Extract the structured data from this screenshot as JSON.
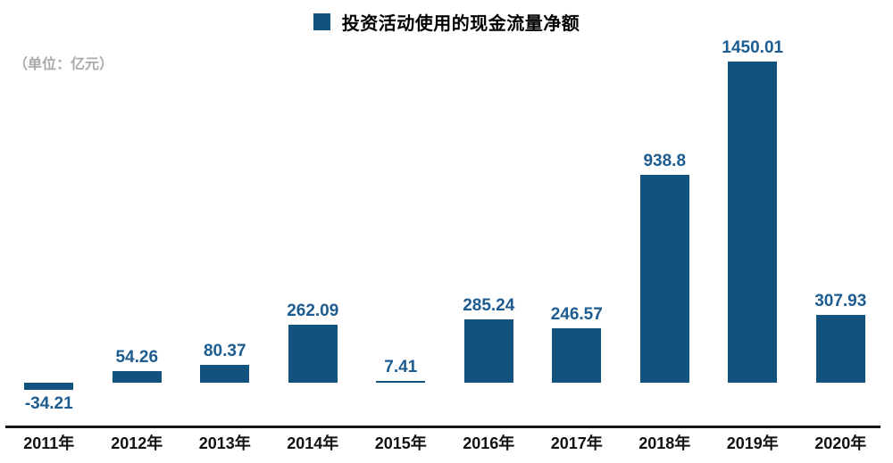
{
  "legend": {
    "label": "投资活动使用的现金流量净额"
  },
  "unit_label": "（单位：亿元）",
  "chart_data": {
    "type": "bar",
    "title": "投资活动使用的现金流量净额",
    "subtitle": "",
    "xlabel": "",
    "ylabel": "亿元",
    "unit_label": "（单位：亿元）",
    "categories": [
      "2011年",
      "2012年",
      "2013年",
      "2014年",
      "2015年",
      "2016年",
      "2017年",
      "2018年",
      "2019年",
      "2020年"
    ],
    "series": [
      {
        "name": "投资活动使用的现金流量净额",
        "values": [
          -34.21,
          54.26,
          80.37,
          262.09,
          7.41,
          285.24,
          246.57,
          938.8,
          1450.01,
          307.93
        ]
      }
    ],
    "values": [
      -34.21,
      54.26,
      80.37,
      262.09,
      7.41,
      285.24,
      246.57,
      938.8,
      1450.01,
      307.93
    ],
    "value_labels": [
      "-34.21",
      "54.26",
      "80.37",
      "262.09",
      "7.41",
      "285.24",
      "246.57",
      "938.8",
      "1450.01",
      "307.93"
    ],
    "ylim": [
      -100,
      1500
    ],
    "grid": false,
    "y_axis_visible": false,
    "legend_position": "top-center",
    "colors": {
      "bar": "#12527e",
      "value_label": "#1d5c90",
      "axis_line": "#161616",
      "category_label": "#111111",
      "title": "#000000",
      "unit_label": "#ababab",
      "background": "#ffffff"
    }
  }
}
